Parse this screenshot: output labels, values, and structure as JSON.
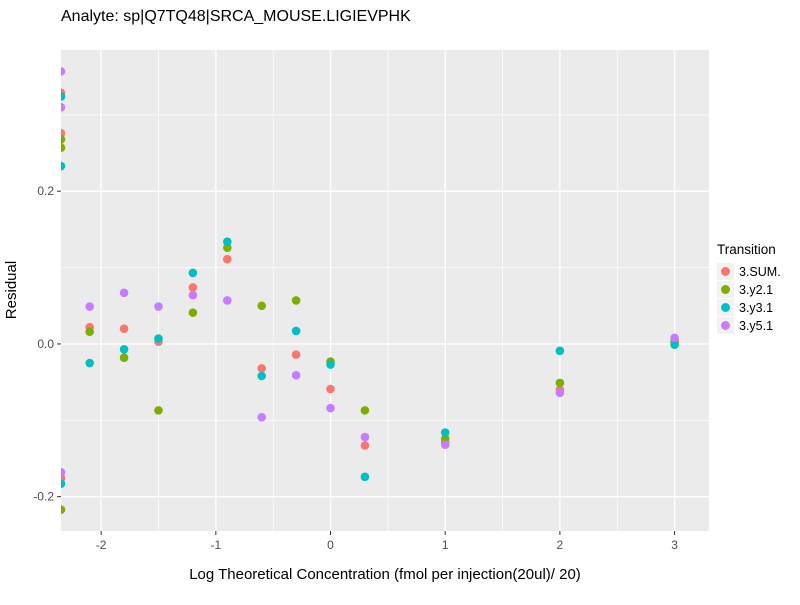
{
  "chart_data": {
    "type": "scatter",
    "title": "Analyte: sp|Q7TQ48|SRCA_MOUSE.LIGIEVPHK",
    "xlabel": "Log Theoretical Concentration (fmol per injection(20ul)/ 20)",
    "ylabel": "Residual",
    "legend_title": "Transition",
    "legend_position": "right",
    "grid": "on",
    "panel_bg_color": "#EBEBEB",
    "grid_color": "#FFFFFF",
    "tick_text_color": "#4D4D4D",
    "tick_mark_color": "#333333",
    "legend_key_bg_color": "#F2F2F2",
    "xlim": [
      -2.35,
      3.3
    ],
    "ylim": [
      -0.245,
      0.385
    ],
    "x_ticks": [
      -2,
      -1,
      0,
      1,
      2,
      3
    ],
    "x_tick_labels": [
      "-2",
      "-1",
      "0",
      "1",
      "2",
      "3"
    ],
    "x_minor_ticks": [
      -1.5,
      -0.5,
      0.5,
      1.5,
      2.5
    ],
    "y_ticks": [
      0.2,
      0.0,
      -0.2
    ],
    "y_tick_labels": [
      "0.2",
      "0.0",
      "-0.2"
    ],
    "y_minor_ticks": [
      0.3,
      0.1,
      -0.1
    ],
    "point_radius": 4.3,
    "series": [
      {
        "name": "3.SUM.",
        "color": "#F8766D",
        "points": [
          [
            -2.35,
            0.329
          ],
          [
            -2.35,
            0.276
          ],
          [
            -2.35,
            -0.176
          ],
          [
            -2.1,
            0.022
          ],
          [
            -1.8,
            0.02
          ],
          [
            -1.5,
            0.003
          ],
          [
            -1.2,
            0.074
          ],
          [
            -0.9,
            0.111
          ],
          [
            -0.6,
            -0.032
          ],
          [
            -0.3,
            -0.014
          ],
          [
            0,
            -0.059
          ],
          [
            0.3,
            -0.133
          ],
          [
            1,
            -0.129
          ],
          [
            2,
            -0.06
          ],
          [
            3,
            0.005
          ]
        ]
      },
      {
        "name": "3.y2.1",
        "color": "#7CAE00",
        "points": [
          [
            -2.35,
            0.268
          ],
          [
            -2.35,
            0.257
          ],
          [
            -2.35,
            -0.217
          ],
          [
            -2.1,
            0.016
          ],
          [
            -1.8,
            -0.018
          ],
          [
            -1.5,
            -0.087
          ],
          [
            -1.2,
            0.041
          ],
          [
            -0.9,
            0.126
          ],
          [
            -0.6,
            0.05
          ],
          [
            -0.3,
            0.057
          ],
          [
            0,
            -0.023
          ],
          [
            0.3,
            -0.087
          ],
          [
            1,
            -0.124
          ],
          [
            2,
            -0.051
          ],
          [
            3,
            0.002
          ]
        ]
      },
      {
        "name": "3.y3.1",
        "color": "#00BFC4",
        "points": [
          [
            -2.35,
            0.324
          ],
          [
            -2.35,
            0.233
          ],
          [
            -2.35,
            -0.183
          ],
          [
            -2.1,
            -0.025
          ],
          [
            -1.8,
            -0.007
          ],
          [
            -1.5,
            0.007
          ],
          [
            -1.2,
            0.093
          ],
          [
            -0.9,
            0.134
          ],
          [
            -0.6,
            -0.042
          ],
          [
            -0.3,
            0.017
          ],
          [
            0,
            -0.027
          ],
          [
            0.3,
            -0.174
          ],
          [
            1,
            -0.116
          ],
          [
            2,
            -0.009
          ],
          [
            3,
            -0.001
          ]
        ]
      },
      {
        "name": "3.y5.1",
        "color": "#C77CFF",
        "points": [
          [
            -2.35,
            0.357
          ],
          [
            -2.35,
            0.31
          ],
          [
            -2.35,
            -0.168
          ],
          [
            -2.1,
            0.049
          ],
          [
            -1.8,
            0.067
          ],
          [
            -1.5,
            0.049
          ],
          [
            -1.2,
            0.064
          ],
          [
            -0.9,
            0.057
          ],
          [
            -0.6,
            -0.096
          ],
          [
            -0.3,
            -0.041
          ],
          [
            0,
            -0.084
          ],
          [
            0.3,
            -0.122
          ],
          [
            1,
            -0.132
          ],
          [
            2,
            -0.064
          ],
          [
            3,
            0.008
          ]
        ]
      }
    ]
  }
}
